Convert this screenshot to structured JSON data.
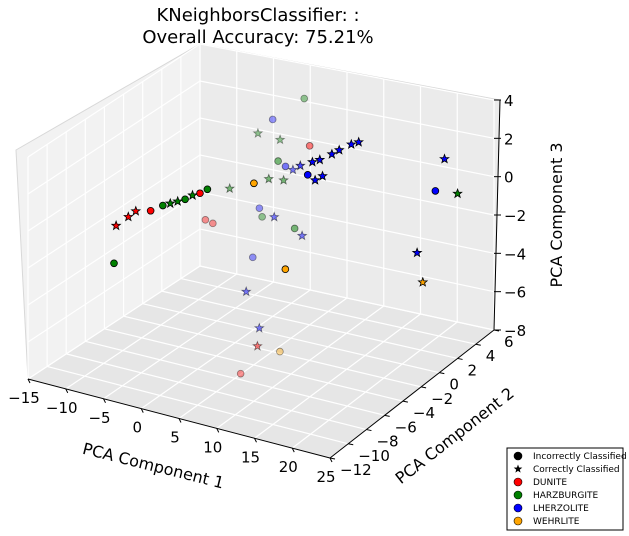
{
  "chart_data": {
    "type": "scatter",
    "projection": "3d",
    "title_line1": "KNeighborsClassifier: :",
    "title_line2": "Overall Accuracy: 75.21%",
    "xlabel": "PCA Component 1",
    "ylabel": "PCA Component 2",
    "zlabel": "PCA Component 3",
    "xlim": [
      -15,
      25
    ],
    "ylim": [
      -12,
      6
    ],
    "zlim": [
      -8,
      4
    ],
    "x_ticks": [
      "−15",
      "−10",
      "−5",
      "0",
      "5",
      "10",
      "15",
      "20",
      "25"
    ],
    "y_ticks": [
      "−12",
      "−10",
      "−8",
      "−6",
      "−4",
      "−2",
      "0",
      "2",
      "4",
      "6"
    ],
    "z_ticks": [
      "−8",
      "−6",
      "−4",
      "−2",
      "0",
      "2",
      "4"
    ],
    "grid": true,
    "legend_position": "bottom-right",
    "legend": [
      {
        "label": "Incorrectly Classified",
        "marker": "circle",
        "color": "#000000"
      },
      {
        "label": "Correctly Classified",
        "marker": "star",
        "color": "#000000"
      },
      {
        "label": "DUNITE",
        "marker": "circle",
        "color": "#ff0000"
      },
      {
        "label": "HARZBURGITE",
        "marker": "circle",
        "color": "#008000"
      },
      {
        "label": "LHERZOLITE",
        "marker": "circle",
        "color": "#0000ff"
      },
      {
        "label": "WEHRLITE",
        "marker": "circle",
        "color": "#ffa500"
      }
    ],
    "colors": {
      "DUNITE": "#ff0000",
      "HARZBURGITE": "#008000",
      "LHERZOLITE": "#0000ff",
      "WEHRLITE": "#ffa500"
    },
    "points": [
      {
        "x": 0,
        "y": 2,
        "z": 2.5,
        "cls": "LHERZOLITE",
        "marker": "circle",
        "depth": 0.4
      },
      {
        "x": 3,
        "y": 3,
        "z": 3.5,
        "cls": "HARZBURGITE",
        "marker": "circle",
        "depth": 0.4
      },
      {
        "x": 5,
        "y": 2,
        "z": 1.5,
        "cls": "DUNITE",
        "marker": "circle",
        "depth": 0.5
      },
      {
        "x": 1,
        "y": 2,
        "z": 1.5,
        "cls": "HARZBURGITE",
        "marker": "star",
        "depth": 0.4
      },
      {
        "x": -2,
        "y": 2,
        "z": 1.6,
        "cls": "HARZBURGITE",
        "marker": "star",
        "depth": 0.4
      },
      {
        "x": 2,
        "y": 1,
        "z": 0.8,
        "cls": "HARZBURGITE",
        "marker": "circle",
        "depth": 0.5
      },
      {
        "x": 3,
        "y": 1,
        "z": 0.6,
        "cls": "LHERZOLITE",
        "marker": "circle",
        "depth": 0.5
      },
      {
        "x": 4,
        "y": 1,
        "z": 0.5,
        "cls": "LHERZOLITE",
        "marker": "star",
        "depth": 0.5
      },
      {
        "x": 5,
        "y": 1,
        "z": 0.8,
        "cls": "LHERZOLITE",
        "marker": "star",
        "depth": 0.7
      },
      {
        "x": 6,
        "y": 1.5,
        "z": 0.9,
        "cls": "LHERZOLITE",
        "marker": "star",
        "depth": 1
      },
      {
        "x": 7,
        "y": 1.5,
        "z": 1.1,
        "cls": "LHERZOLITE",
        "marker": "star",
        "depth": 1
      },
      {
        "x": 8,
        "y": 2,
        "z": 1.3,
        "cls": "LHERZOLITE",
        "marker": "star",
        "depth": 1
      },
      {
        "x": 9,
        "y": 2,
        "z": 1.6,
        "cls": "LHERZOLITE",
        "marker": "star",
        "depth": 1
      },
      {
        "x": 10,
        "y": 2.5,
        "z": 1.8,
        "cls": "LHERZOLITE",
        "marker": "star",
        "depth": 1
      },
      {
        "x": 11,
        "y": 2.5,
        "z": 2.0,
        "cls": "LHERZOLITE",
        "marker": "star",
        "depth": 1
      },
      {
        "x": 6,
        "y": 1,
        "z": 0.4,
        "cls": "LHERZOLITE",
        "marker": "circle",
        "depth": 1
      },
      {
        "x": 7,
        "y": 1,
        "z": 0.2,
        "cls": "LHERZOLITE",
        "marker": "star",
        "depth": 1
      },
      {
        "x": 8,
        "y": 1,
        "z": 0.5,
        "cls": "LHERZOLITE",
        "marker": "star",
        "depth": 1
      },
      {
        "x": 4,
        "y": 0,
        "z": 0.3,
        "cls": "HARZBURGITE",
        "marker": "star",
        "depth": 0.5
      },
      {
        "x": 2,
        "y": 0,
        "z": 0.2,
        "cls": "HARZBURGITE",
        "marker": "star",
        "depth": 0.5
      },
      {
        "x": 0,
        "y": 0,
        "z": -0.2,
        "cls": "WEHRLITE",
        "marker": "circle",
        "depth": 1
      },
      {
        "x": -2,
        "y": -1,
        "z": -0.3,
        "cls": "HARZBURGITE",
        "marker": "star",
        "depth": 0.5
      },
      {
        "x": -5,
        "y": -1,
        "z": -0.6,
        "cls": "HARZBURGITE",
        "marker": "circle",
        "depth": 1
      },
      {
        "x": -6,
        "y": -1,
        "z": -0.9,
        "cls": "DUNITE",
        "marker": "circle",
        "depth": 1
      },
      {
        "x": -7,
        "y": -1,
        "z": -1.1,
        "cls": "HARZBURGITE",
        "marker": "star",
        "depth": 1
      },
      {
        "x": -8,
        "y": -1,
        "z": -1.4,
        "cls": "HARZBURGITE",
        "marker": "circle",
        "depth": 1
      },
      {
        "x": -9,
        "y": -1,
        "z": -1.6,
        "cls": "HARZBURGITE",
        "marker": "star",
        "depth": 1
      },
      {
        "x": -10,
        "y": -1,
        "z": -1.8,
        "cls": "HARZBURGITE",
        "marker": "star",
        "depth": 1
      },
      {
        "x": -11,
        "y": -1,
        "z": -2.0,
        "cls": "HARZBURGITE",
        "marker": "circle",
        "depth": 1
      },
      {
        "x": -12,
        "y": -1.5,
        "z": -2.2,
        "cls": "DUNITE",
        "marker": "circle",
        "depth": 1
      },
      {
        "x": -14,
        "y": -1.5,
        "z": -2.4,
        "cls": "DUNITE",
        "marker": "star",
        "depth": 1
      },
      {
        "x": -15,
        "y": -1.5,
        "z": -2.8,
        "cls": "DUNITE",
        "marker": "star",
        "depth": 1
      },
      {
        "x": -16,
        "y": -2,
        "z": -3.2,
        "cls": "DUNITE",
        "marker": "star",
        "depth": 1
      },
      {
        "x": -15,
        "y": -3,
        "z": -4.8,
        "cls": "HARZBURGITE",
        "marker": "circle",
        "depth": 1
      },
      {
        "x": -4,
        "y": -2,
        "z": -1.8,
        "cls": "DUNITE",
        "marker": "circle",
        "depth": 0.4
      },
      {
        "x": -3,
        "y": -2,
        "z": -1.9,
        "cls": "DUNITE",
        "marker": "circle",
        "depth": 0.4
      },
      {
        "x": 4,
        "y": -1,
        "z": -1.3,
        "cls": "LHERZOLITE",
        "marker": "star",
        "depth": 0.5
      },
      {
        "x": 3,
        "y": -1.5,
        "z": -1.2,
        "cls": "HARZBURGITE",
        "marker": "circle",
        "depth": 0.4
      },
      {
        "x": 2,
        "y": -1,
        "z": -1.0,
        "cls": "LHERZOLITE",
        "marker": "circle",
        "depth": 0.4
      },
      {
        "x": 3,
        "y": -2.5,
        "z": -3.0,
        "cls": "LHERZOLITE",
        "marker": "circle",
        "depth": 0.4
      },
      {
        "x": 8,
        "y": -2,
        "z": -1.2,
        "cls": "HARZBURGITE",
        "marker": "circle",
        "depth": 0.5
      },
      {
        "x": 9,
        "y": -2,
        "z": -1.5,
        "cls": "LHERZOLITE",
        "marker": "star",
        "depth": 0.5
      },
      {
        "x": 8,
        "y": -3,
        "z": -3.0,
        "cls": "WEHRLITE",
        "marker": "circle",
        "depth": 1
      },
      {
        "x": 4,
        "y": -4,
        "z": -4.2,
        "cls": "LHERZOLITE",
        "marker": "star",
        "depth": 0.5
      },
      {
        "x": 7,
        "y": -5,
        "z": -5.5,
        "cls": "LHERZOLITE",
        "marker": "star",
        "depth": 0.5
      },
      {
        "x": 8,
        "y": -6,
        "z": -6.0,
        "cls": "DUNITE",
        "marker": "star",
        "depth": 0.5
      },
      {
        "x": 11,
        "y": -6,
        "z": -6.0,
        "cls": "WEHRLITE",
        "marker": "circle",
        "depth": 0.4
      },
      {
        "x": 7,
        "y": -7,
        "z": -7.2,
        "cls": "DUNITE",
        "marker": "circle",
        "depth": 0.4
      },
      {
        "x": 22,
        "y": 3,
        "z": 1.8,
        "cls": "LHERZOLITE",
        "marker": "star",
        "depth": 1
      },
      {
        "x": 22,
        "y": 2,
        "z": 0.5,
        "cls": "LHERZOLITE",
        "marker": "circle",
        "depth": 1
      },
      {
        "x": 25,
        "y": 2,
        "z": 0.6,
        "cls": "HARZBURGITE",
        "marker": "star",
        "depth": 1
      },
      {
        "x": 22,
        "y": 0,
        "z": -2.0,
        "cls": "LHERZOLITE",
        "marker": "star",
        "depth": 1
      },
      {
        "x": 24,
        "y": -1,
        "z": -3.0,
        "cls": "WEHRLITE",
        "marker": "star",
        "depth": 1
      }
    ]
  }
}
